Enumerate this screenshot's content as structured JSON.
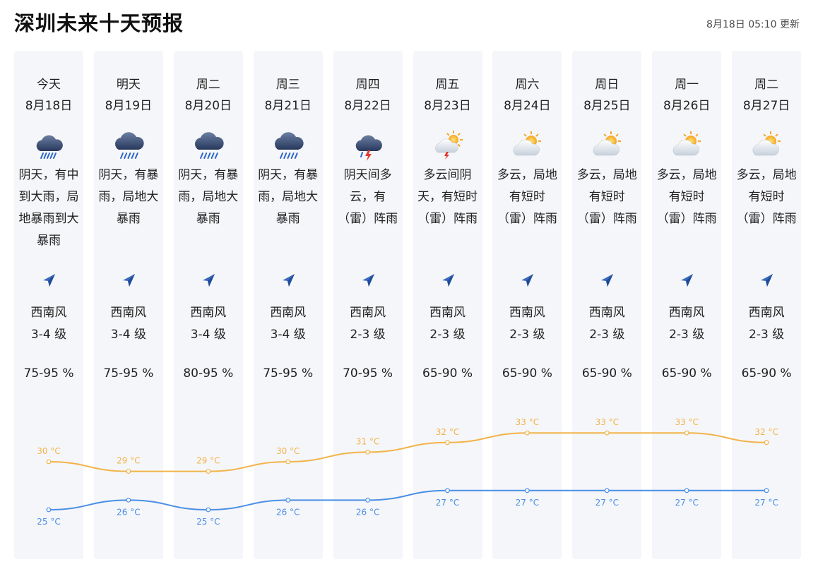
{
  "header": {
    "title": "深圳未来十天预报",
    "updated": "8月18日 05:10 更新"
  },
  "colors": {
    "high": "#f2b349",
    "low": "#4a8fe6",
    "card": "#f5f6f9"
  },
  "days": [
    {
      "day": "今天",
      "date": "8月18日",
      "icon": "rain-cloud-icon",
      "desc": "阴天，有中\n到大雨，局\n地暴雨到大\n暴雨",
      "wind_dir": "西南风",
      "wind_level": "3-4 级",
      "humidity": "75-95 %",
      "high": "30 °C",
      "low": "25 °C"
    },
    {
      "day": "明天",
      "date": "8月19日",
      "icon": "heavy-rain-cloud-icon",
      "desc": "阴天，有暴\n雨，局地大\n暴雨",
      "wind_dir": "西南风",
      "wind_level": "3-4 级",
      "humidity": "75-95 %",
      "high": "29 °C",
      "low": "26 °C"
    },
    {
      "day": "周二",
      "date": "8月20日",
      "icon": "heavy-rain-cloud-icon",
      "desc": "阴天，有暴\n雨，局地大\n暴雨",
      "wind_dir": "西南风",
      "wind_level": "3-4 级",
      "humidity": "80-95 %",
      "high": "29 °C",
      "low": "25 °C"
    },
    {
      "day": "周三",
      "date": "8月21日",
      "icon": "heavy-rain-cloud-icon",
      "desc": "阴天，有暴\n雨，局地大\n暴雨",
      "wind_dir": "西南风",
      "wind_level": "3-4 级",
      "humidity": "75-95 %",
      "high": "30 °C",
      "low": "26 °C"
    },
    {
      "day": "周四",
      "date": "8月22日",
      "icon": "thunderstorm-cloud-icon",
      "desc": "阴天间多\n云，有\n（雷）阵雨",
      "wind_dir": "西南风",
      "wind_level": "2-3 级",
      "humidity": "70-95 %",
      "high": "31 °C",
      "low": "26 °C"
    },
    {
      "day": "周五",
      "date": "8月23日",
      "icon": "sun-cloud-thunder-icon",
      "desc": "多云间阴\n天，有短时\n（雷）阵雨",
      "wind_dir": "西南风",
      "wind_level": "2-3 级",
      "humidity": "65-90 %",
      "high": "32 °C",
      "low": "27 °C"
    },
    {
      "day": "周六",
      "date": "8月24日",
      "icon": "partly-cloudy-icon",
      "desc": "多云，局地\n有短时\n（雷）阵雨",
      "wind_dir": "西南风",
      "wind_level": "2-3 级",
      "humidity": "65-90 %",
      "high": "33 °C",
      "low": "27 °C"
    },
    {
      "day": "周日",
      "date": "8月25日",
      "icon": "partly-cloudy-icon",
      "desc": "多云，局地\n有短时\n（雷）阵雨",
      "wind_dir": "西南风",
      "wind_level": "2-3 级",
      "humidity": "65-90 %",
      "high": "33 °C",
      "low": "27 °C"
    },
    {
      "day": "周一",
      "date": "8月26日",
      "icon": "partly-cloudy-icon",
      "desc": "多云，局地\n有短时\n（雷）阵雨",
      "wind_dir": "西南风",
      "wind_level": "2-3 级",
      "humidity": "65-90 %",
      "high": "33 °C",
      "low": "27 °C"
    },
    {
      "day": "周二",
      "date": "8月27日",
      "icon": "partly-cloudy-icon",
      "desc": "多云，局地\n有短时\n（雷）阵雨",
      "wind_dir": "西南风",
      "wind_level": "2-3 级",
      "humidity": "65-90 %",
      "high": "32 °C",
      "low": "27 °C"
    }
  ],
  "chart_data": {
    "type": "line",
    "x": [
      "8月18日",
      "8月19日",
      "8月20日",
      "8月21日",
      "8月22日",
      "8月23日",
      "8月24日",
      "8月25日",
      "8月26日",
      "8月27日"
    ],
    "series": [
      {
        "values": [
          30,
          29,
          29,
          30,
          31,
          32,
          33,
          33,
          33,
          32
        ]
      },
      {
        "values": [
          25,
          26,
          25,
          26,
          26,
          27,
          27,
          27,
          27,
          27
        ]
      }
    ],
    "unit": "°C"
  }
}
